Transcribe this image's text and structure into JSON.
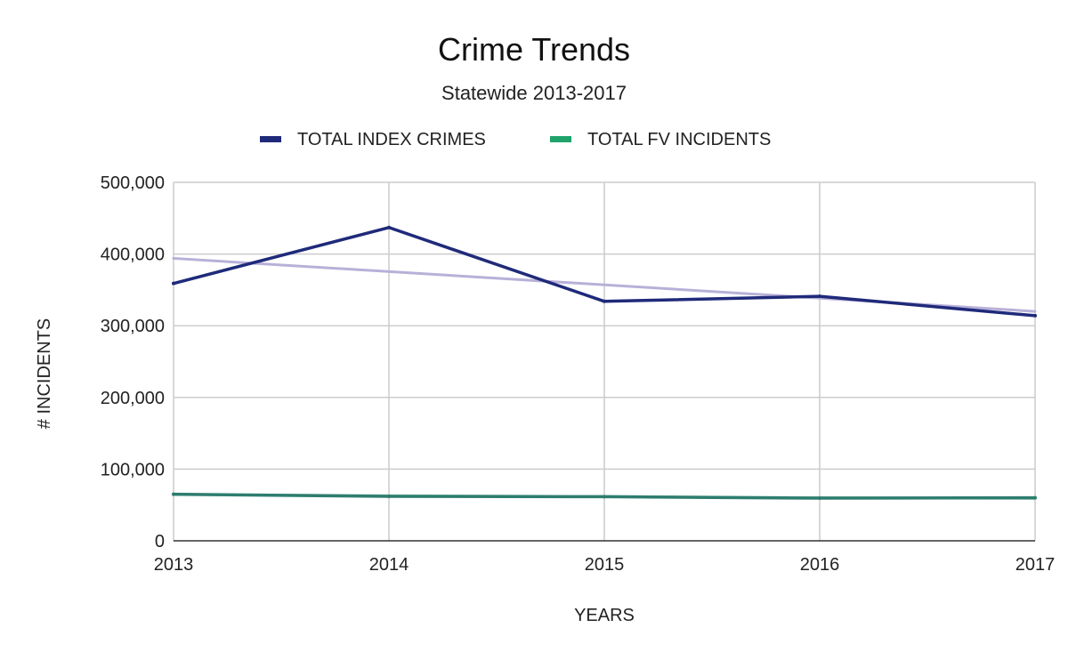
{
  "chart_data": {
    "type": "line",
    "title": "Crime Trends",
    "subtitle": "Statewide 2013-2017",
    "xlabel": "YEARS",
    "ylabel": "# INCIDENTS",
    "x": [
      "2013",
      "2014",
      "2015",
      "2016",
      "2017"
    ],
    "ylim": [
      0,
      500000
    ],
    "yticks": [
      0,
      100000,
      200000,
      300000,
      400000,
      500000
    ],
    "ytick_labels": [
      "0",
      "100,000",
      "200,000",
      "300,000",
      "400,000",
      "500,000"
    ],
    "grid": true,
    "legend_position": "top-center",
    "series": [
      {
        "name": "TOTAL INDEX CRIMES",
        "color": "#1f2a7a",
        "values": [
          359000,
          437000,
          334000,
          341000,
          314000
        ]
      },
      {
        "name": "TOTAL FV INCIDENTS",
        "color": "#2e7d6f",
        "legend_color": "#1fa36b",
        "values": [
          65000,
          62000,
          61500,
          59500,
          60000
        ]
      }
    ],
    "trendlines": [
      {
        "series": "TOTAL INDEX CRIMES",
        "color": "#b8b0d8",
        "start": 394000,
        "end": 320000
      },
      {
        "series": "TOTAL FV INCIDENTS",
        "color": "#a9d7c4",
        "start": 64500,
        "end": 59000
      }
    ]
  }
}
